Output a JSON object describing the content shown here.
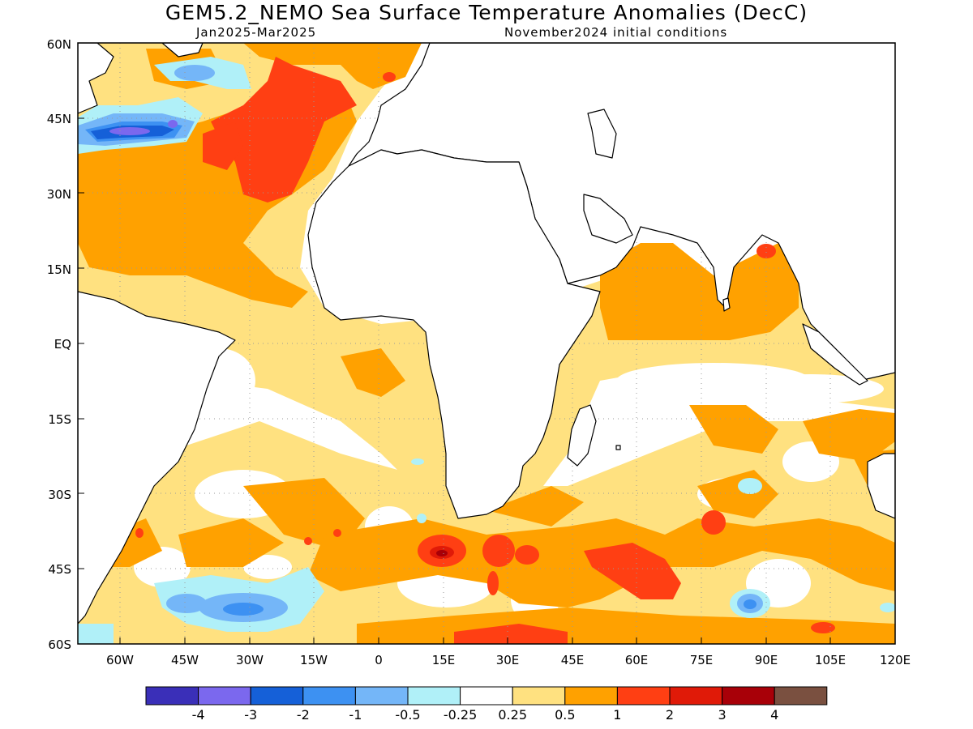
{
  "title": "GEM5.2_NEMO Sea Surface Temperature Anomalies (DecC)",
  "subtitle_left": "Jan2025-Mar2025",
  "subtitle_right": "November2024 initial conditions",
  "map": {
    "lon_range": [
      -68,
      120
    ],
    "lat_range": [
      -60,
      60
    ],
    "lon_ticks": [
      "60W",
      "45W",
      "30W",
      "15W",
      "0",
      "15E",
      "30E",
      "45E",
      "60E",
      "75E",
      "90E",
      "105E",
      "120E"
    ],
    "lat_ticks": [
      "60N",
      "45N",
      "30N",
      "15N",
      "EQ",
      "15S",
      "30S",
      "45S",
      "60S"
    ],
    "grid": "dotted"
  },
  "colorbar": {
    "colors": [
      "#3a2fb8",
      "#7b68ee",
      "#1560d8",
      "#3d91f2",
      "#74b6f8",
      "#b0f0f8",
      "#ffffff",
      "#ffe180",
      "#ffa100",
      "#ff3f13",
      "#e01a08",
      "#a80008",
      "#7a5040"
    ],
    "labels": [
      "-4",
      "-3",
      "-2",
      "-1",
      "-0.5",
      "-0.25",
      "0.25",
      "0.5",
      "1",
      "2",
      "3",
      "4"
    ]
  }
}
